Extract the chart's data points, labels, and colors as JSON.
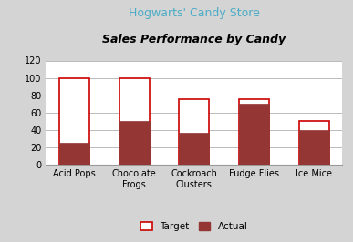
{
  "title_line1": "Hogwarts' Candy Store",
  "title_line2": "Sales Performance by Candy",
  "categories": [
    "Acid Pops",
    "Chocolate\nFrogs",
    "Cockroach\nClusters",
    "Fudge Flies",
    "Ice Mice"
  ],
  "target_values": [
    100,
    100,
    75,
    75,
    50
  ],
  "actual_values": [
    25,
    50,
    37,
    70,
    40
  ],
  "target_color": "#FFFFFF",
  "target_edge_color": "#CC0000",
  "actual_color": "#943634",
  "ylim": [
    0,
    120
  ],
  "yticks": [
    0,
    20,
    40,
    60,
    80,
    100,
    120
  ],
  "title_line1_color": "#4BACC6",
  "title_line2_color": "#000000",
  "background_color": "#FFFFFF",
  "figure_bg": "#D4D4D4",
  "bar_width": 0.5,
  "legend_target_label": "Target",
  "legend_actual_label": "Actual"
}
